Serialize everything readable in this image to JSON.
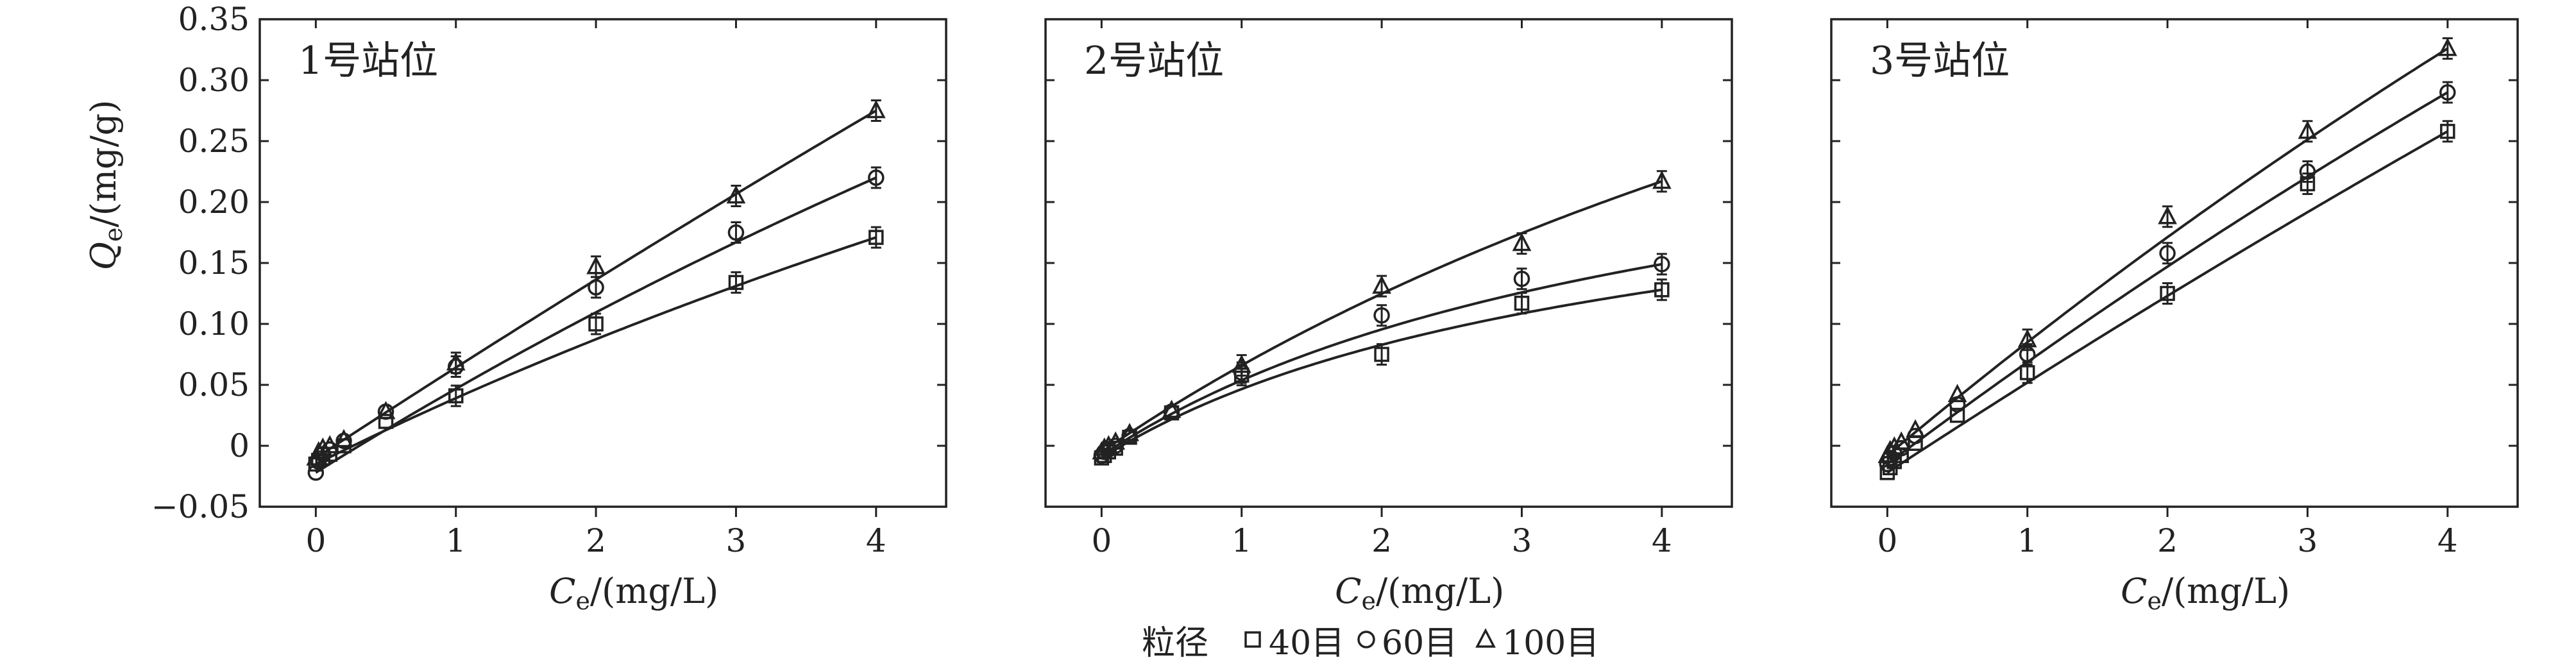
{
  "chart_data": [
    {
      "type": "scatter",
      "title": "1号站位",
      "xlabel": "Ce/(mg/L)",
      "ylabel": "Qe/(mg/g)",
      "xlim": [
        -0.4,
        4.5
      ],
      "ylim": [
        -0.05,
        0.35
      ],
      "xticks": [
        0,
        1,
        2,
        3,
        4
      ],
      "yticks": [
        -0.05,
        0,
        0.05,
        0.1,
        0.15,
        0.2,
        0.25,
        0.3,
        0.35
      ],
      "ytick_labels": [
        "−0.05",
        "0",
        "0.05",
        "0.10",
        "0.15",
        "0.20",
        "0.25",
        "0.30",
        "0.35"
      ],
      "show_ytick_labels": true,
      "show_ylabel": true,
      "fitted_curves": true,
      "series": [
        {
          "name": "40目",
          "marker": "square",
          "x": [
            0,
            0.02,
            0.05,
            0.1,
            0.2,
            0.5,
            1,
            2,
            3,
            4
          ],
          "y": [
            -0.015,
            -0.012,
            -0.01,
            -0.007,
            0.0,
            0.02,
            0.041,
            0.1,
            0.134,
            0.171
          ],
          "fit": [
            0.045,
            0.08
          ]
        },
        {
          "name": "60目",
          "marker": "circle",
          "x": [
            0,
            0.02,
            0.05,
            0.1,
            0.2,
            0.5,
            1,
            2,
            3,
            4
          ],
          "y": [
            -0.022,
            -0.013,
            -0.007,
            -0.003,
            0.004,
            0.028,
            0.065,
            0.13,
            0.175,
            0.22
          ],
          "fit": [
            0.069,
            0.05
          ]
        },
        {
          "name": "100目",
          "marker": "triangle",
          "x": [
            0,
            0.02,
            0.05,
            0.1,
            0.2,
            0.5,
            1,
            2,
            3,
            4
          ],
          "y": [
            -0.01,
            -0.005,
            -0.002,
            0.0,
            0.005,
            0.028,
            0.068,
            0.147,
            0.205,
            0.275
          ],
          "fit": [
            0.07,
            0.015
          ]
        }
      ]
    },
    {
      "type": "scatter",
      "title": "2号站位",
      "xlabel": "Ce/(mg/L)",
      "ylabel": "",
      "xlim": [
        -0.4,
        4.5
      ],
      "ylim": [
        -0.05,
        0.35
      ],
      "xticks": [
        0,
        1,
        2,
        3,
        4
      ],
      "yticks": [
        -0.05,
        0,
        0.05,
        0.1,
        0.15,
        0.2,
        0.25,
        0.3,
        0.35
      ],
      "ytick_labels": [],
      "show_ytick_labels": false,
      "show_ylabel": false,
      "fitted_curves": true,
      "series": [
        {
          "name": "40目",
          "marker": "square",
          "x": [
            0,
            0.02,
            0.05,
            0.1,
            0.2,
            0.5,
            1,
            2,
            3,
            4
          ],
          "y": [
            -0.01,
            -0.008,
            -0.005,
            -0.002,
            0.007,
            0.027,
            0.058,
            0.075,
            0.117,
            0.128
          ],
          "fit": [
            0.07,
            0.3
          ]
        },
        {
          "name": "60目",
          "marker": "circle",
          "x": [
            0,
            0.02,
            0.05,
            0.1,
            0.2,
            0.5,
            1,
            2,
            3,
            4
          ],
          "y": [
            -0.008,
            -0.005,
            -0.003,
            0.0,
            0.008,
            0.028,
            0.06,
            0.107,
            0.137,
            0.149
          ],
          "fit": [
            0.075,
            0.25
          ]
        },
        {
          "name": "100目",
          "marker": "triangle",
          "x": [
            0,
            0.02,
            0.05,
            0.1,
            0.2,
            0.5,
            1,
            2,
            3,
            4
          ],
          "y": [
            -0.005,
            -0.002,
            0.0,
            0.003,
            0.01,
            0.029,
            0.066,
            0.131,
            0.166,
            0.217
          ],
          "fit": [
            0.075,
            0.11
          ]
        }
      ]
    },
    {
      "type": "scatter",
      "title": "3号站位",
      "xlabel": "Ce/(mg/L)",
      "ylabel": "",
      "xlim": [
        -0.4,
        4.5
      ],
      "ylim": [
        -0.05,
        0.35
      ],
      "xticks": [
        0,
        1,
        2,
        3,
        4
      ],
      "yticks": [
        -0.05,
        0,
        0.05,
        0.1,
        0.15,
        0.2,
        0.25,
        0.3,
        0.35
      ],
      "ytick_labels": [],
      "show_ytick_labels": false,
      "show_ylabel": false,
      "fitted_curves": true,
      "series": [
        {
          "name": "40目",
          "marker": "square",
          "x": [
            0,
            0.02,
            0.05,
            0.1,
            0.2,
            0.5,
            1,
            2,
            3,
            4
          ],
          "y": [
            -0.022,
            -0.018,
            -0.013,
            -0.008,
            0.002,
            0.025,
            0.06,
            0.125,
            0.215,
            0.258
          ],
          "fit": [
            0.07,
            0.02
          ]
        },
        {
          "name": "60目",
          "marker": "circle",
          "x": [
            0,
            0.02,
            0.05,
            0.1,
            0.2,
            0.5,
            1,
            2,
            3,
            4
          ],
          "y": [
            -0.015,
            -0.01,
            -0.006,
            -0.002,
            0.008,
            0.034,
            0.075,
            0.158,
            0.225,
            0.29
          ],
          "fit": [
            0.083,
            0.035
          ]
        },
        {
          "name": "100目",
          "marker": "triangle",
          "x": [
            0,
            0.02,
            0.05,
            0.1,
            0.2,
            0.5,
            1,
            2,
            3,
            4
          ],
          "y": [
            -0.008,
            -0.004,
            -0.001,
            0.003,
            0.013,
            0.042,
            0.087,
            0.188,
            0.258,
            0.326
          ],
          "fit": [
            0.095,
            0.04
          ]
        }
      ]
    }
  ],
  "legend": {
    "title": "粒径",
    "position": "bottom-center",
    "items": [
      {
        "label": "40目",
        "marker": "square"
      },
      {
        "label": "60目",
        "marker": "circle"
      },
      {
        "label": "100目",
        "marker": "triangle"
      }
    ]
  },
  "colors": {
    "ink": "#222222",
    "background": "#ffffff"
  }
}
